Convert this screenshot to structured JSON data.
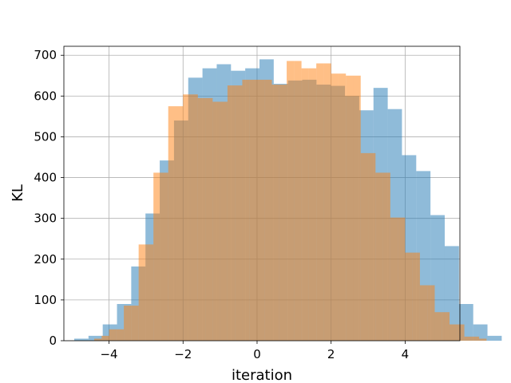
{
  "chart_data": {
    "type": "bar",
    "title": "",
    "xlabel": "iteration",
    "ylabel": "KL",
    "xlim": [
      -5.22,
      5.48
    ],
    "ylim": [
      0,
      722
    ],
    "xticks": [
      -4,
      -2,
      0,
      2,
      4
    ],
    "xtick_labels": [
      "−4",
      "−2",
      "0",
      "2",
      "4"
    ],
    "yticks": [
      0,
      100,
      200,
      300,
      400,
      500,
      600,
      700
    ],
    "ytick_labels": [
      "0",
      "100",
      "200",
      "300",
      "400",
      "500",
      "600",
      "700"
    ],
    "grid": true,
    "legend": "none",
    "series": [
      {
        "color": "#1f77b4",
        "alpha": 0.5,
        "bin_start": -4.94,
        "bin_width": 0.385,
        "values": [
          5,
          12,
          40,
          90,
          182,
          312,
          442,
          540,
          645,
          668,
          678,
          662,
          668,
          690,
          630,
          638,
          640,
          628,
          625,
          600,
          565,
          620,
          568,
          455,
          416,
          308,
          232,
          90,
          40,
          12
        ]
      },
      {
        "color": "#ff7f0e",
        "alpha": 0.5,
        "bin_start": -4.4,
        "bin_width": 0.2,
        "values": [
          5,
          12,
          28,
          28,
          86,
          86,
          236,
          236,
          412,
          412,
          575,
          575,
          604,
          604,
          595,
          595,
          586,
          586,
          626,
          626,
          640,
          640,
          640,
          640,
          628,
          628,
          686,
          686,
          668,
          668,
          680,
          680,
          655,
          655,
          650,
          650,
          460,
          460,
          412,
          412,
          302,
          302,
          216,
          216,
          136,
          136,
          70,
          70,
          40,
          40,
          10,
          10,
          5
        ]
      }
    ]
  }
}
